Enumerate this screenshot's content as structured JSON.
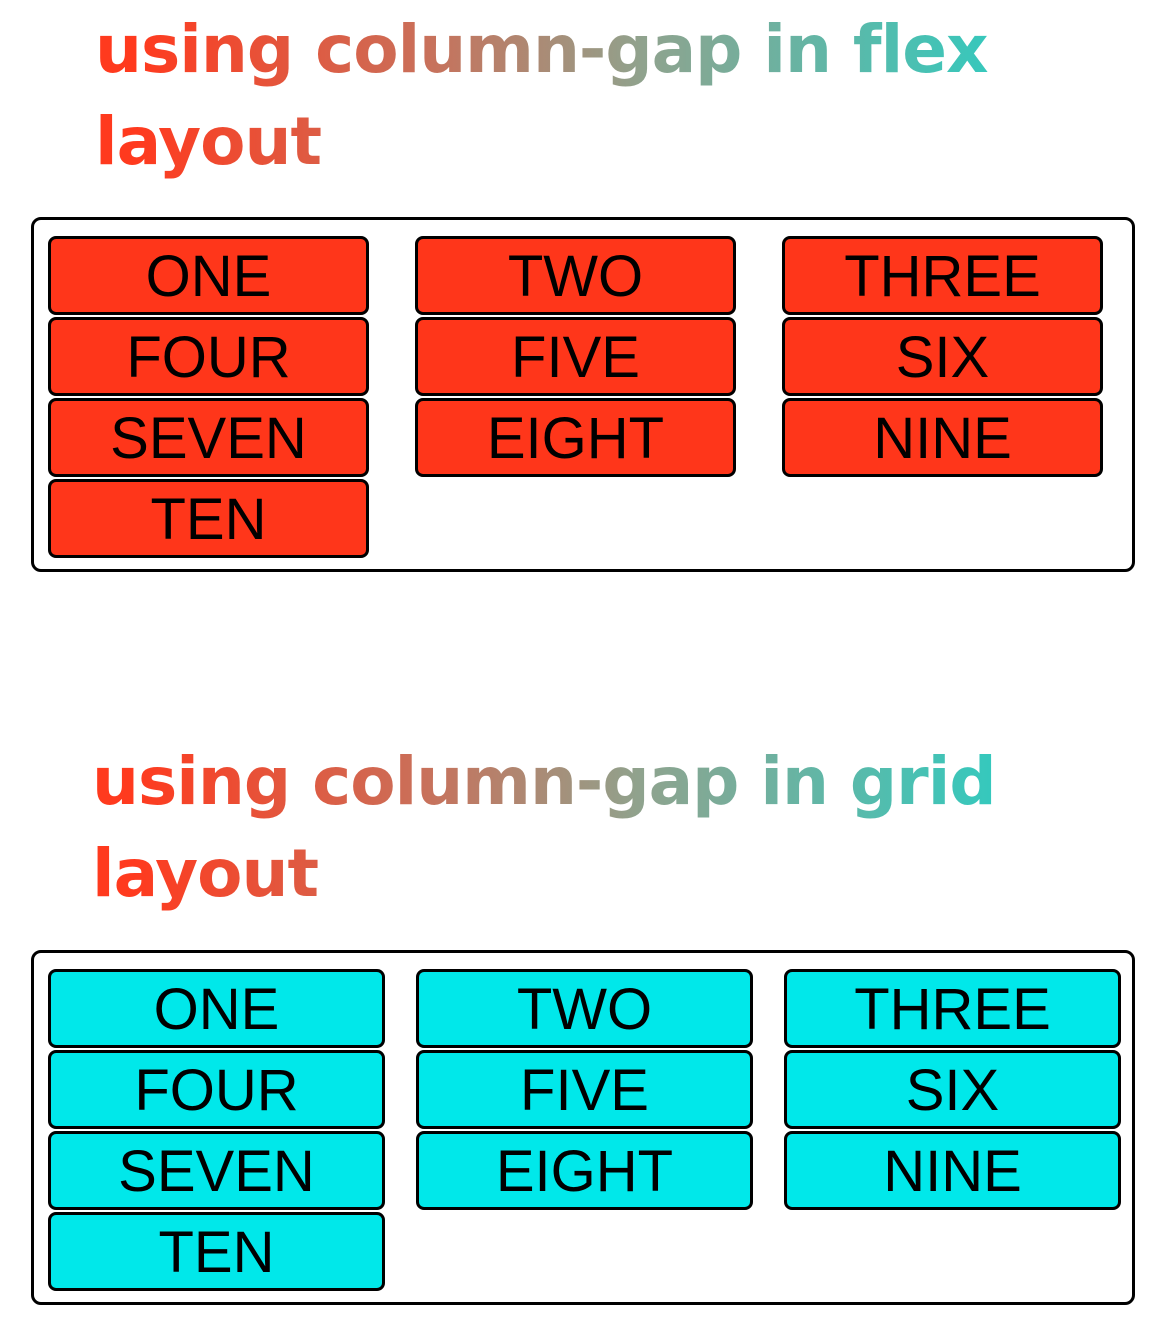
{
  "flex_section": {
    "title": "using column-gap in flex layout",
    "color": "#ff361a",
    "items": [
      "ONE",
      "TWO",
      "THREE",
      "FOUR",
      "FIVE",
      "SIX",
      "SEVEN",
      "EIGHT",
      "NINE",
      "TEN"
    ]
  },
  "grid_section": {
    "title": "using column-gap in grid layout",
    "color": "#00e8ea",
    "items": [
      "ONE",
      "TWO",
      "THREE",
      "FOUR",
      "FIVE",
      "SIX",
      "SEVEN",
      "EIGHT",
      "NINE",
      "TEN"
    ]
  }
}
